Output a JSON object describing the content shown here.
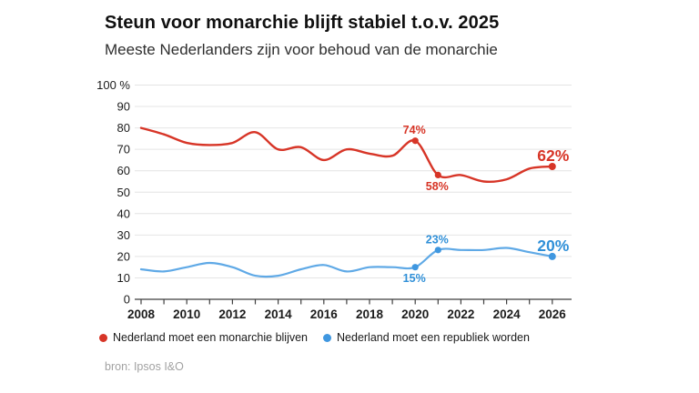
{
  "header": {
    "title": "Steun voor monarchie blijft stabiel t.o.v. 2025",
    "subtitle": "Meeste Nederlanders zijn voor behoud van de monarchie"
  },
  "source_label": "bron: Ipsos I&O",
  "colors": {
    "red": "#d73527",
    "red_label": "#d73527",
    "blue": "#5fa9e6",
    "blue_dot": "#3f97e0",
    "blue_label": "#3090d8",
    "grid": "#e4e4e4",
    "axis": "#3f3f3f",
    "tick_text": "#1c1c1c",
    "background": "#ffffff"
  },
  "chart_data": {
    "type": "line",
    "title": "Steun voor monarchie blijft stabiel t.o.v. 2025",
    "subtitle": "Meeste Nederlanders zijn voor behoud van de monarchie",
    "xlabel": "",
    "ylabel": "",
    "grid": true,
    "legend_position": "bottom",
    "x": [
      2008,
      2009,
      2010,
      2011,
      2012,
      2013,
      2014,
      2015,
      2016,
      2017,
      2018,
      2019,
      2020,
      2021,
      2022,
      2023,
      2024,
      2025,
      2026
    ],
    "xticks_labeled": [
      2008,
      2010,
      2012,
      2014,
      2016,
      2018,
      2020,
      2022,
      2024,
      2026
    ],
    "ylim": [
      0,
      100
    ],
    "yticks": [
      0,
      10,
      20,
      30,
      40,
      50,
      60,
      70,
      80,
      90,
      100
    ],
    "ytick_top_label": "100 %",
    "series": [
      {
        "name": "Nederland moet een monarchie blijven",
        "color_key": "red",
        "dot_color_key": "red",
        "label_color_key": "red_label",
        "values": [
          80,
          77,
          73,
          72,
          73,
          78,
          70,
          71,
          65,
          70,
          68,
          67,
          74,
          58,
          58,
          55,
          56,
          61,
          62
        ],
        "annotations": [
          {
            "year": 2020,
            "label": "74%",
            "pos": "above"
          },
          {
            "year": 2021,
            "label": "58%",
            "pos": "below"
          },
          {
            "year": 2026,
            "label": "62%",
            "pos": "end"
          }
        ]
      },
      {
        "name": "Nederland moet een republiek worden",
        "color_key": "blue",
        "dot_color_key": "blue_dot",
        "label_color_key": "blue_label",
        "values": [
          14,
          13,
          15,
          17,
          15,
          11,
          11,
          14,
          16,
          13,
          15,
          15,
          15,
          23,
          23,
          23,
          24,
          22,
          20
        ],
        "annotations": [
          {
            "year": 2020,
            "label": "15%",
            "pos": "below"
          },
          {
            "year": 2021,
            "label": "23%",
            "pos": "above"
          },
          {
            "year": 2026,
            "label": "20%",
            "pos": "end"
          }
        ]
      }
    ]
  }
}
